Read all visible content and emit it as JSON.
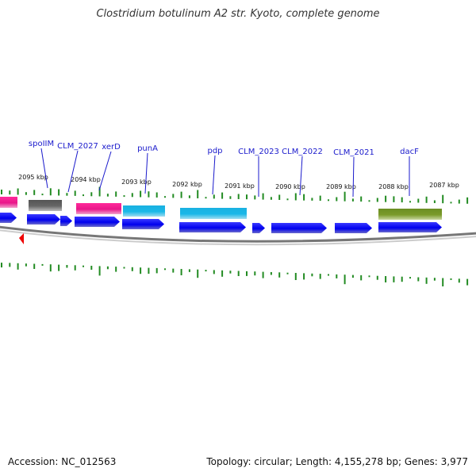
{
  "title": "Clostridium botulinum A2 str. Kyoto, complete genome",
  "accession": "Accession: NC_012563",
  "summary": "Topology: circular; Length: 4,155,278 bp; Genes: 3,977",
  "colors": {
    "cds": "#0000ee",
    "label": "#1a1acc",
    "backbone": "#888888",
    "gc_tick": "#228b22",
    "origin_marker": "#ee0000",
    "feature_gray": "#666666",
    "feature_magenta": "#e8178a",
    "feature_cyan": "#1ab8e8",
    "feature_olive": "#6b8e23"
  },
  "scale_labels": [
    "2095 kbp",
    "2094 kbp",
    "2093 kbp",
    "2092 kbp",
    "2091 kbp",
    "2090 kbp",
    "2089 kbp",
    "2088 kbp",
    "2087 kbp"
  ],
  "gene_labels": [
    "spoIIM",
    "CLM_2027",
    "xerD",
    "punA",
    "pdp",
    "CLM_2023",
    "CLM_2022",
    "CLM_2021",
    "dacF"
  ]
}
